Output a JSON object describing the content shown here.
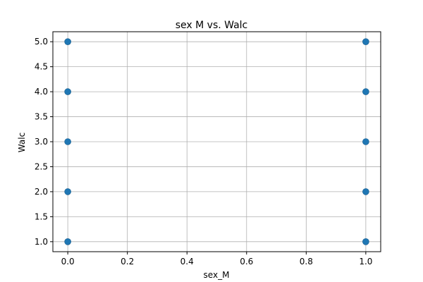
{
  "chart_data": {
    "type": "scatter",
    "title": "sex M vs. Walc",
    "xlabel": "sex_M",
    "ylabel": "Walc",
    "xlim": [
      -0.05,
      1.05
    ],
    "ylim": [
      0.8,
      5.2
    ],
    "xticks": [
      0.0,
      0.2,
      0.4,
      0.6,
      0.8,
      1.0
    ],
    "xtick_labels": [
      "0.0",
      "0.2",
      "0.4",
      "0.6",
      "0.8",
      "1.0"
    ],
    "yticks": [
      1.0,
      1.5,
      2.0,
      2.5,
      3.0,
      3.5,
      4.0,
      4.5,
      5.0
    ],
    "ytick_labels": [
      "1.0",
      "1.5",
      "2.0",
      "2.5",
      "3.0",
      "3.5",
      "4.0",
      "4.5",
      "5.0"
    ],
    "grid": true,
    "marker_color": "#1f77b4",
    "points": [
      {
        "x": 0,
        "y": 1
      },
      {
        "x": 0,
        "y": 2
      },
      {
        "x": 0,
        "y": 3
      },
      {
        "x": 0,
        "y": 4
      },
      {
        "x": 0,
        "y": 5
      },
      {
        "x": 1,
        "y": 1
      },
      {
        "x": 1,
        "y": 2
      },
      {
        "x": 1,
        "y": 3
      },
      {
        "x": 1,
        "y": 4
      },
      {
        "x": 1,
        "y": 5
      }
    ]
  }
}
